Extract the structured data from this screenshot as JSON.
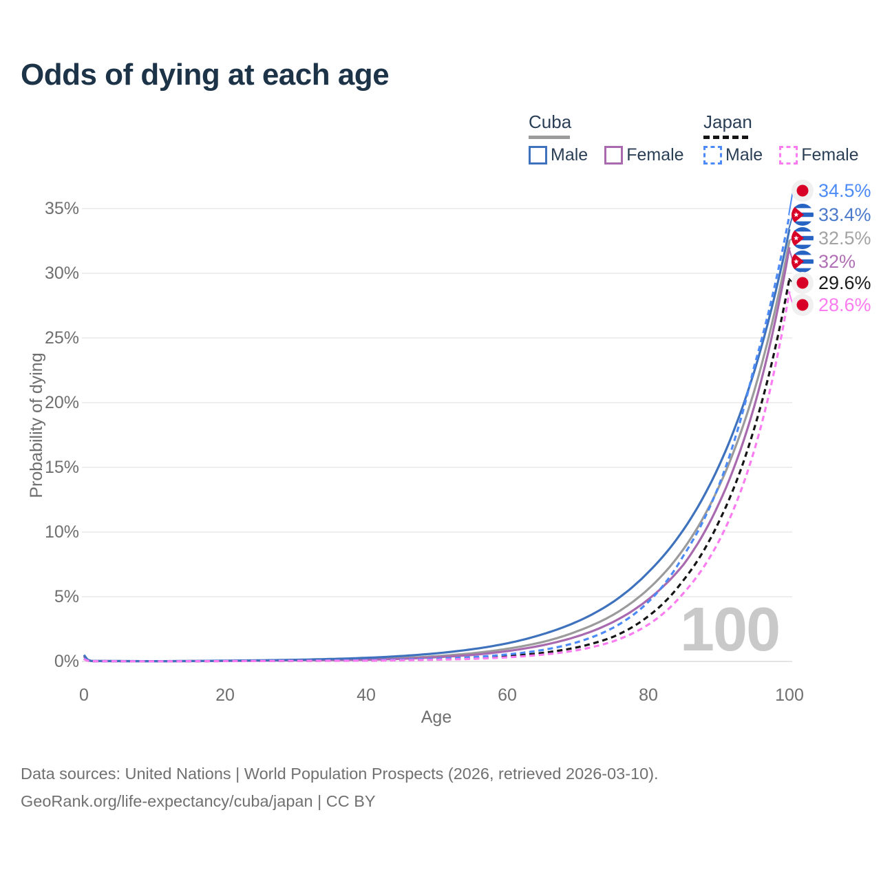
{
  "title": "Odds of dying at each age",
  "legend": {
    "groups": [
      {
        "label": "Cuba",
        "line_style": "solid",
        "underline_color": "#9b9b9b",
        "items": [
          {
            "label": "Male",
            "color": "#3f72bd",
            "dashed": false
          },
          {
            "label": "Female",
            "color": "#a869af",
            "dashed": false
          }
        ]
      },
      {
        "label": "Japan",
        "line_style": "dashed",
        "underline_color": "#141414",
        "items": [
          {
            "label": "Male",
            "color": "#4c8bf7",
            "dashed": true
          },
          {
            "label": "Female",
            "color": "#fb7cf1",
            "dashed": true
          }
        ]
      }
    ]
  },
  "axes": {
    "x_title": "Age",
    "y_title": "Probability of dying"
  },
  "footer": {
    "line1": "Data sources: United Nations | World Population Prospects (2026, retrieved 2026-03-10).",
    "line2": "GeoRank.org/life-expectancy/cuba/japan | CC BY"
  },
  "chart_data": {
    "type": "line",
    "title": "Odds of dying at each age",
    "xlabel": "Age",
    "ylabel": "Probability of dying",
    "xlim": [
      0,
      100
    ],
    "ylim": [
      0,
      35
    ],
    "x_ticks": [
      0,
      20,
      40,
      60,
      80,
      100
    ],
    "y_ticks": [
      "0%",
      "5%",
      "10%",
      "15%",
      "20%",
      "25%",
      "30%",
      "35%"
    ],
    "grid": "horizontal",
    "legend_position": "top-right",
    "watermark": "100",
    "series": [
      {
        "id": "cuba-male",
        "name": "Cuba Male",
        "country": "cuba",
        "sex": "male",
        "color": "#3f72bd",
        "dashed": false,
        "end_label": "33.4%",
        "end_value": 33.4,
        "points": [
          [
            0,
            0.5
          ],
          [
            1,
            0.04
          ],
          [
            10,
            0.02
          ],
          [
            20,
            0.06
          ],
          [
            30,
            0.13
          ],
          [
            40,
            0.28
          ],
          [
            45,
            0.42
          ],
          [
            50,
            0.63
          ],
          [
            55,
            0.94
          ],
          [
            60,
            1.4
          ],
          [
            65,
            2.1
          ],
          [
            70,
            3.1
          ],
          [
            75,
            4.6
          ],
          [
            80,
            6.9
          ],
          [
            85,
            10.2
          ],
          [
            90,
            15.1
          ],
          [
            95,
            22.4
          ],
          [
            100,
            33.4
          ]
        ]
      },
      {
        "id": "cuba-female",
        "name": "Cuba Female",
        "country": "cuba",
        "sex": "female",
        "color": "#a869af",
        "dashed": false,
        "end_label": "32%",
        "end_value": 32,
        "points": [
          [
            0,
            0.38
          ],
          [
            1,
            0.03
          ],
          [
            10,
            0.015
          ],
          [
            20,
            0.04
          ],
          [
            30,
            0.09
          ],
          [
            40,
            0.13
          ],
          [
            45,
            0.2
          ],
          [
            50,
            0.33
          ],
          [
            55,
            0.5
          ],
          [
            60,
            0.8
          ],
          [
            65,
            1.25
          ],
          [
            70,
            1.95
          ],
          [
            75,
            3.05
          ],
          [
            80,
            4.8
          ],
          [
            85,
            7.5
          ],
          [
            90,
            12.2
          ],
          [
            95,
            19.7
          ],
          [
            100,
            32
          ]
        ]
      },
      {
        "id": "cuba-total",
        "name": "Cuba (both sexes)",
        "country": "cuba",
        "sex": "total",
        "color": "#9b9b9b",
        "dashed": false,
        "end_label": "32.5%",
        "end_value": 32.5,
        "points": [
          [
            0,
            0.45
          ],
          [
            1,
            0.035
          ],
          [
            10,
            0.018
          ],
          [
            20,
            0.05
          ],
          [
            30,
            0.11
          ],
          [
            40,
            0.17
          ],
          [
            45,
            0.26
          ],
          [
            50,
            0.41
          ],
          [
            55,
            0.63
          ],
          [
            60,
            0.98
          ],
          [
            65,
            1.5
          ],
          [
            70,
            2.35
          ],
          [
            75,
            3.6
          ],
          [
            80,
            5.6
          ],
          [
            85,
            8.7
          ],
          [
            90,
            13.5
          ],
          [
            95,
            20.9
          ],
          [
            100,
            32.5
          ]
        ]
      },
      {
        "id": "japan-male",
        "name": "Japan Male",
        "country": "japan",
        "sex": "male",
        "color": "#4c8bf7",
        "dashed": true,
        "end_label": "34.5%",
        "end_value": 34.5,
        "points": [
          [
            0,
            0.22
          ],
          [
            1,
            0.025
          ],
          [
            10,
            0.012
          ],
          [
            20,
            0.04
          ],
          [
            30,
            0.06
          ],
          [
            40,
            0.09
          ],
          [
            45,
            0.14
          ],
          [
            50,
            0.21
          ],
          [
            55,
            0.33
          ],
          [
            60,
            0.54
          ],
          [
            65,
            0.88
          ],
          [
            70,
            1.5
          ],
          [
            75,
            2.6
          ],
          [
            80,
            4.6
          ],
          [
            85,
            8.2
          ],
          [
            90,
            13.6
          ],
          [
            95,
            22.8
          ],
          [
            100,
            34.5
          ]
        ]
      },
      {
        "id": "japan-female",
        "name": "Japan Female",
        "country": "japan",
        "sex": "female",
        "color": "#fb7cf1",
        "dashed": true,
        "end_label": "28.6%",
        "end_value": 28.6,
        "points": [
          [
            0,
            0.18
          ],
          [
            1,
            0.02
          ],
          [
            10,
            0.009
          ],
          [
            20,
            0.025
          ],
          [
            30,
            0.045
          ],
          [
            40,
            0.06
          ],
          [
            45,
            0.09
          ],
          [
            50,
            0.13
          ],
          [
            55,
            0.2
          ],
          [
            60,
            0.32
          ],
          [
            65,
            0.52
          ],
          [
            70,
            0.88
          ],
          [
            75,
            1.55
          ],
          [
            80,
            2.85
          ],
          [
            85,
            5.3
          ],
          [
            90,
            9.3
          ],
          [
            95,
            16.3
          ],
          [
            100,
            28.6
          ]
        ]
      },
      {
        "id": "japan-total",
        "name": "Japan (both sexes)",
        "country": "japan",
        "sex": "total",
        "color": "#151515",
        "dashed": true,
        "end_label": "29.6%",
        "end_value": 29.6,
        "points": [
          [
            0,
            0.2
          ],
          [
            1,
            0.022
          ],
          [
            10,
            0.01
          ],
          [
            20,
            0.03
          ],
          [
            30,
            0.05
          ],
          [
            40,
            0.07
          ],
          [
            45,
            0.11
          ],
          [
            50,
            0.17
          ],
          [
            55,
            0.26
          ],
          [
            60,
            0.41
          ],
          [
            65,
            0.66
          ],
          [
            70,
            1.1
          ],
          [
            75,
            1.9
          ],
          [
            80,
            3.5
          ],
          [
            85,
            6.3
          ],
          [
            90,
            10.8
          ],
          [
            95,
            18.0
          ],
          [
            100,
            29.6
          ]
        ]
      }
    ],
    "end_labels": [
      {
        "series": "japan-male",
        "value": "34.5%",
        "value_num": 34.5,
        "country": "japan",
        "color": "#4c8bf7"
      },
      {
        "series": "cuba-male",
        "value": "33.4%",
        "value_num": 33.4,
        "country": "cuba",
        "color": "#4a7ac9"
      },
      {
        "series": "cuba-total",
        "value": "32.5%",
        "value_num": 32.5,
        "country": "cuba",
        "color": "#a3a3a3"
      },
      {
        "series": "cuba-female",
        "value": "32%",
        "value_num": 32,
        "country": "cuba",
        "color": "#b06fb5"
      },
      {
        "series": "japan-total",
        "value": "29.6%",
        "value_num": 29.6,
        "country": "japan",
        "color": "#1a1a1a"
      },
      {
        "series": "japan-female",
        "value": "28.6%",
        "value_num": 28.6,
        "country": "japan",
        "color": "#fb7cf1"
      }
    ],
    "flag_colors": {
      "cuba_stripe_blue": "#2663c3",
      "cuba_triangle_red": "#d80027",
      "japan_disc_red": "#d80027",
      "japan_circle_bg": "#f0f0f0"
    }
  }
}
